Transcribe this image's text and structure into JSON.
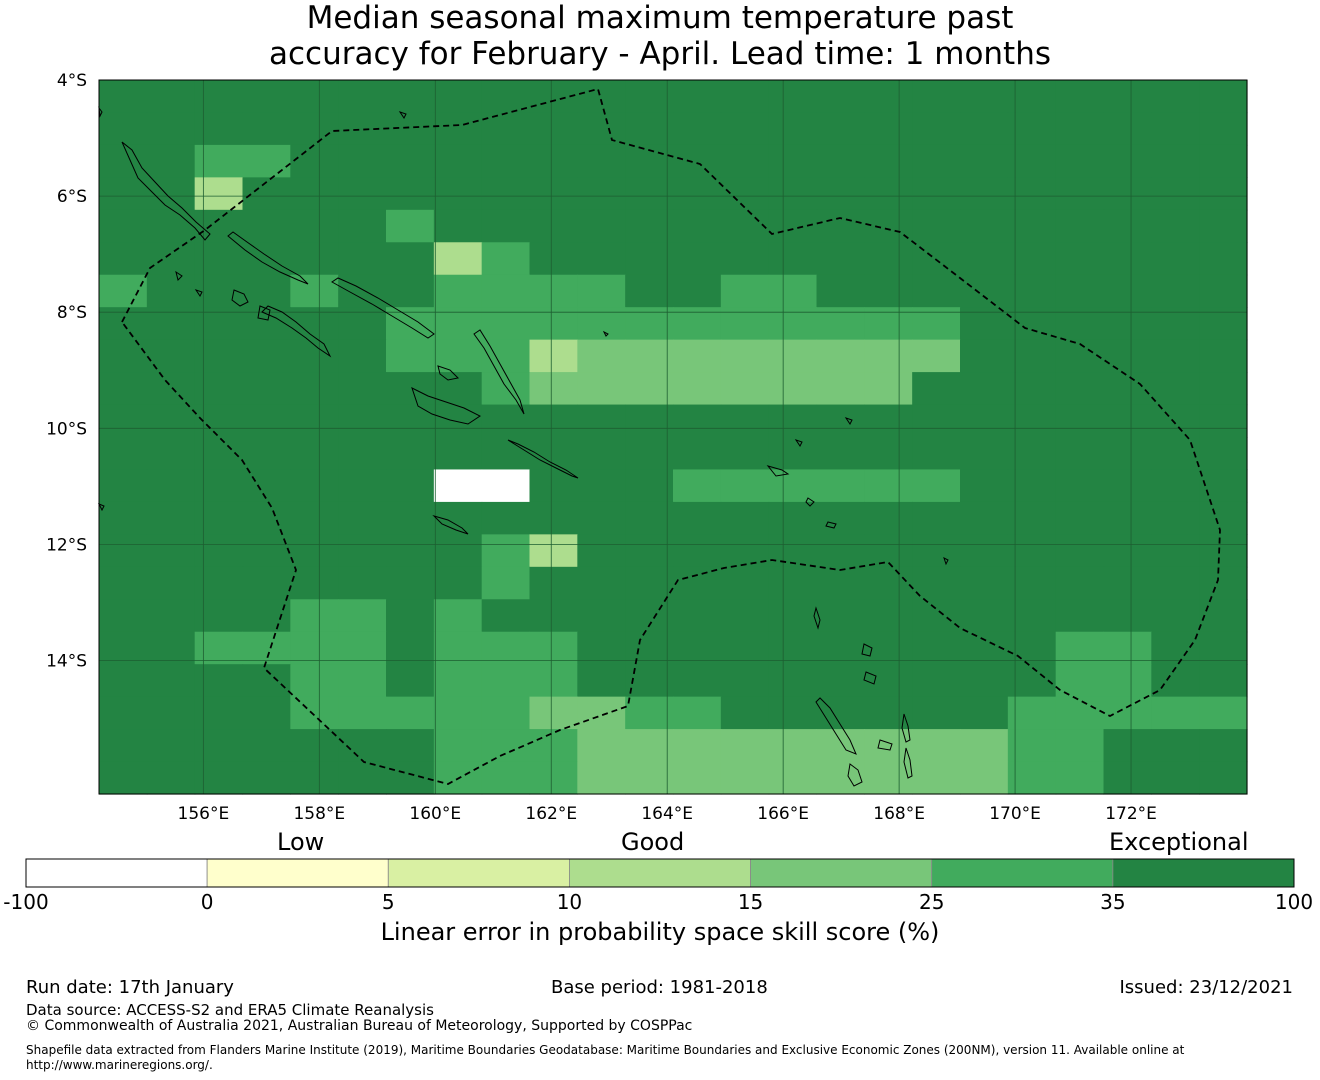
{
  "title": {
    "line1": "Median seasonal maximum temperature past",
    "line2": "accuracy for February - April. Lead time: 1 months"
  },
  "map": {
    "lat_labels": [
      "4°S",
      "6°S",
      "8°S",
      "10°S",
      "12°S",
      "14°S"
    ],
    "lon_labels": [
      "156°E",
      "158°E",
      "160°E",
      "162°E",
      "164°E",
      "166°E",
      "168°E",
      "170°E",
      "172°E"
    ],
    "lat_range": [
      -16.3,
      -4.0
    ],
    "lon_range": [
      154.2,
      174.0
    ],
    "grid": {
      "rows": 22,
      "cols": 24,
      "cell_size_deg": 0.83,
      "category_codes": "0=-100..0, 1=0..5, 2=5..10, 3=10..15, 4=15..25, 5=25..35, 6=35..100",
      "cells": [
        "666666666666666666666666",
        "666666666666666666666666",
        "665566666666666666666666",
        "663666666666666666666666",
        "666666566666666666666666",
        "666666635666666666666666",
        "566656655556655666666666",
        "666666555555555555666666",
        "666666555344444444666666",
        "666666665444444446666666",
        "666666666666666666666666",
        "666666666666666666666666",
        "666666666666555555666666",
        "666666666666666666666666",
        "666666665366666666666666",
        "666666665666666666666666",
        "666655656666666666666666",
        "665555655566666666665566",
        "666655655566666666665566",
        "666655555445566666655555",
        "666666655544444444455666",
        "666666655544444444455666"
      ],
      "missing_cells": [
        [
          12,
          7
        ],
        [
          12,
          8
        ]
      ]
    }
  },
  "colorbar": {
    "colors": [
      "#ffffff",
      "#ffffcc",
      "#d9f0a3",
      "#addd8e",
      "#78c679",
      "#41ab5d",
      "#238443"
    ],
    "tick_labels": [
      "-100",
      "0",
      "5",
      "10",
      "15",
      "25",
      "35",
      "100"
    ],
    "categories": [
      "Low",
      "Good",
      "Exceptional"
    ],
    "label": "Linear error in probability space skill score (%)"
  },
  "footer": {
    "run_date": "Run date: 17th January",
    "base_period": "Base period: 1981-2018",
    "issued": "Issued: 23/12/2021",
    "data_source": "Data source: ACCESS-S2 and ERA5 Climate Reanalysis",
    "copyright": "© Commonwealth of Australia 2021, Australian Bureau of Meteorology, Supported by COSPPac",
    "shapefile": "Shapefile data extracted from Flanders Marine Institute (2019), Maritime Boundaries Geodatabase: Maritime Boundaries and Exclusive Economic Zones (200NM), version 11. Available online at http://www.marineregions.org/."
  }
}
